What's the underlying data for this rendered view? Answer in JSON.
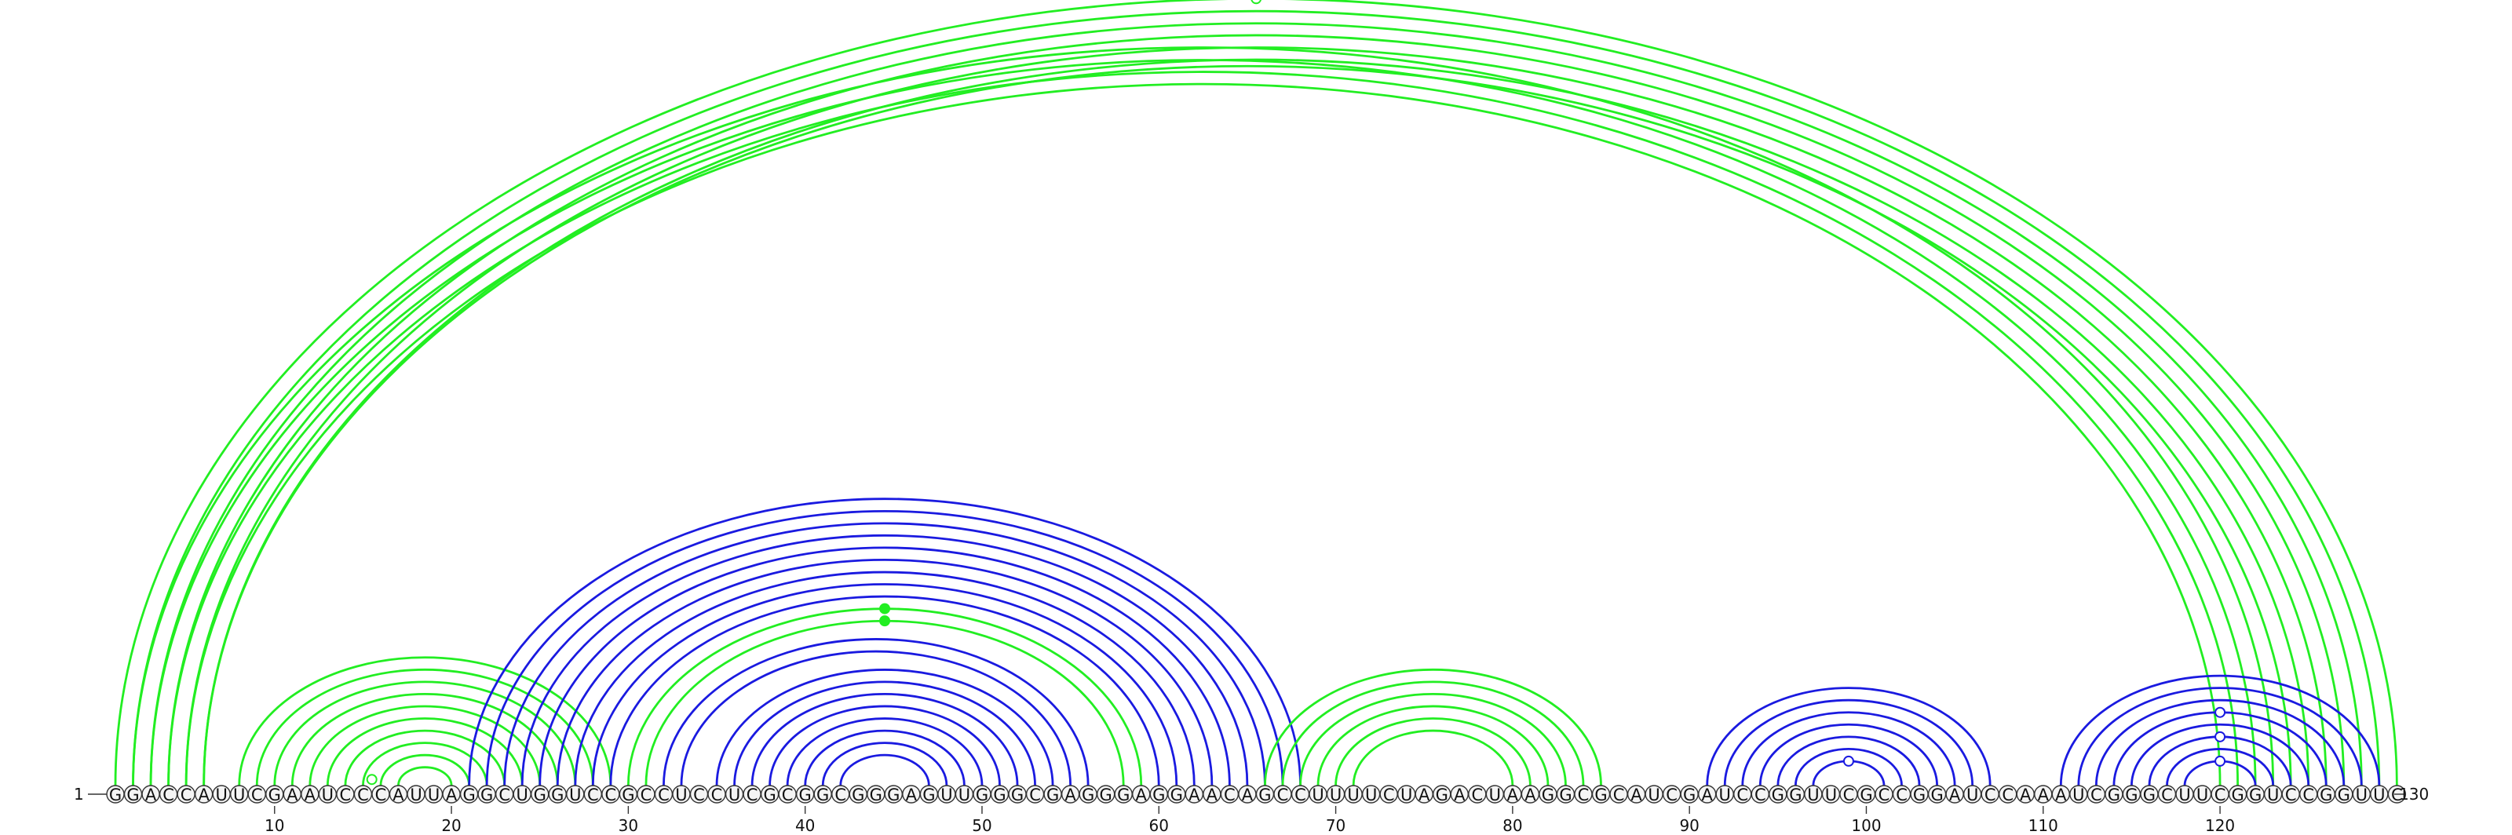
{
  "sequence": "GGACCAUUCGAAUCCCAUUAGGCUGGUCCGCCUCCUCGCGGCGGGAGUUGGGCGAGGGAGGAACAGCCUUUUCUAGACUAAGGCGCAUCGAUCCGGUUCGCCGGAUCCAAAUCGGGCUUCGGUCCGGUUC",
  "start_label": "1",
  "end_label": "130",
  "tick_labels": [
    "10",
    "20",
    "30",
    "40",
    "50",
    "60",
    "70",
    "80",
    "90",
    "100",
    "110",
    "120"
  ],
  "colors": {
    "green": "#22ee22",
    "blue": "#1a1ae0"
  },
  "arcs": [
    {
      "color": "green",
      "pairs": [
        [
          1,
          130
        ],
        [
          2,
          129
        ],
        [
          3,
          128
        ],
        [
          4,
          127
        ],
        [
          5,
          126
        ],
        [
          6,
          125
        ],
        [
          2,
          123
        ],
        [
          3,
          122
        ],
        [
          4,
          121
        ],
        [
          5,
          120
        ],
        [
          6,
          124
        ]
      ],
      "markers": []
    },
    {
      "color": "green",
      "pairs": [
        [
          8,
          29
        ],
        [
          9,
          28
        ],
        [
          10,
          27
        ],
        [
          11,
          26
        ],
        [
          12,
          25
        ],
        [
          13,
          24
        ],
        [
          14,
          23
        ],
        [
          15,
          22
        ],
        [
          16,
          21
        ],
        [
          17,
          20
        ]
      ],
      "markers": []
    },
    {
      "color": "blue",
      "pairs": [
        [
          21,
          68
        ],
        [
          22,
          67
        ],
        [
          23,
          66
        ],
        [
          24,
          65
        ],
        [
          25,
          64
        ],
        [
          26,
          63
        ],
        [
          27,
          62
        ],
        [
          28,
          61
        ],
        [
          29,
          60
        ]
      ],
      "markers": []
    },
    {
      "color": "green",
      "pairs": [
        [
          30,
          59
        ],
        [
          31,
          58
        ]
      ],
      "markers": []
    },
    {
      "color": "blue",
      "pairs": [
        [
          32,
          56
        ],
        [
          33,
          55
        ],
        [
          35,
          54
        ],
        [
          36,
          53
        ],
        [
          37,
          52
        ],
        [
          38,
          51
        ],
        [
          39,
          50
        ],
        [
          40,
          49
        ],
        [
          41,
          48
        ],
        [
          42,
          47
        ]
      ],
      "markers": []
    },
    {
      "color": "green",
      "pairs": [
        [
          66,
          85
        ],
        [
          67,
          84
        ],
        [
          68,
          83
        ],
        [
          69,
          82
        ],
        [
          70,
          81
        ],
        [
          71,
          80
        ]
      ],
      "markers": []
    },
    {
      "color": "blue",
      "pairs": [
        [
          91,
          107
        ],
        [
          92,
          106
        ],
        [
          93,
          105
        ],
        [
          94,
          104
        ],
        [
          95,
          103
        ],
        [
          96,
          102
        ],
        [
          97,
          101
        ]
      ],
      "markers": []
    },
    {
      "color": "blue",
      "pairs": [
        [
          111,
          129
        ],
        [
          112,
          128
        ],
        [
          113,
          127
        ],
        [
          114,
          126
        ],
        [
          115,
          125
        ],
        [
          116,
          124
        ],
        [
          117,
          123
        ],
        [
          118,
          122
        ]
      ],
      "markers": []
    }
  ]
}
